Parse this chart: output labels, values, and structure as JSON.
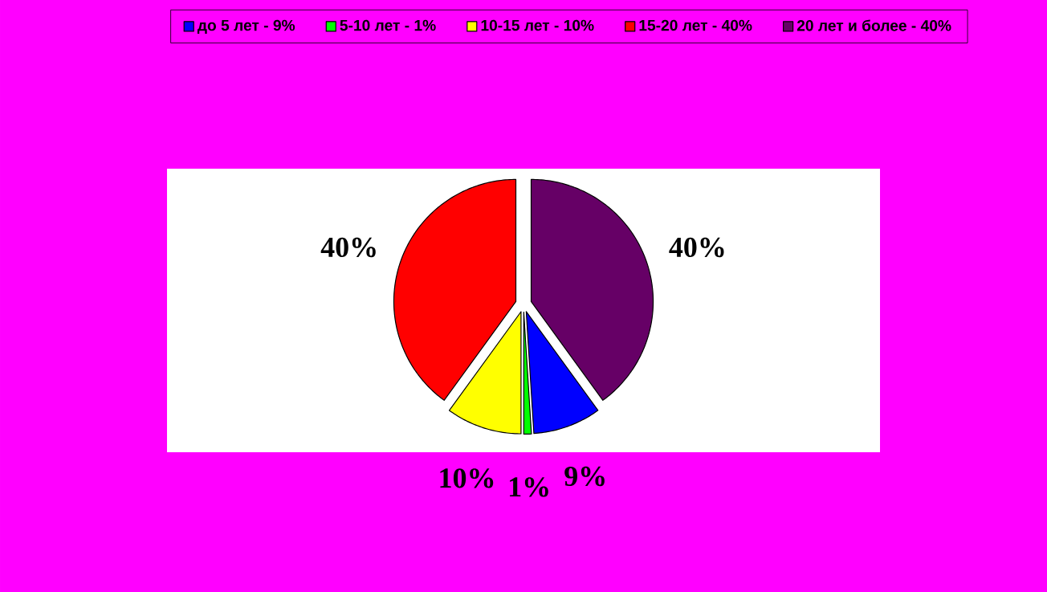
{
  "chart_data": {
    "type": "pie",
    "categories": [
      "до 5 лет - 9%",
      "5-10 лет - 1%",
      "10-15 лет - 10%",
      "15-20 лет - 40%",
      "20 лет и более - 40%"
    ],
    "values": [
      9,
      1,
      10,
      40,
      40
    ],
    "colors": [
      "#0000ff",
      "#00ff00",
      "#ffff00",
      "#ff0000",
      "#660066"
    ],
    "value_labels": [
      "9%",
      "1%",
      "10%",
      "40%",
      "40%"
    ],
    "legend": "top"
  }
}
